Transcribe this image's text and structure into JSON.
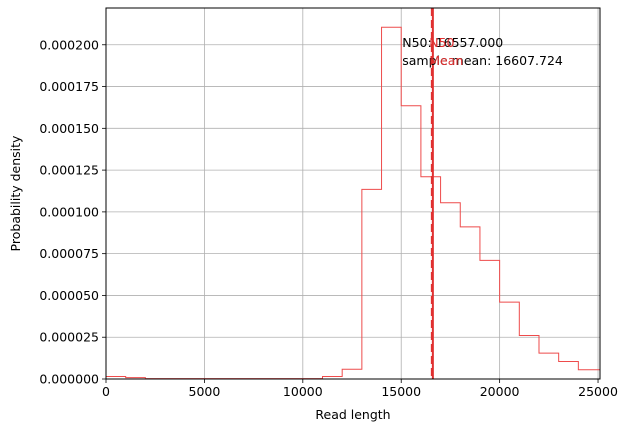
{
  "chart_data": {
    "type": "histogram",
    "xlabel": "Read length",
    "ylabel": "Probability density",
    "xlim": [
      0,
      25100
    ],
    "ylim": [
      0,
      0.000222
    ],
    "grid": true,
    "x_ticks": [
      0,
      5000,
      10000,
      15000,
      20000,
      25000
    ],
    "x_tick_labels": [
      "0",
      "5000",
      "10000",
      "15000",
      "20000",
      "25000"
    ],
    "y_ticks": [
      0,
      2.5e-05,
      5e-05,
      7.5e-05,
      0.0001,
      0.000125,
      0.00015,
      0.000175,
      0.0002
    ],
    "y_tick_labels": [
      "0.000000",
      "0.000025",
      "0.000050",
      "0.000075",
      "0.000100",
      "0.000125",
      "0.000150",
      "0.000175",
      "0.000200"
    ],
    "bin_edges": [
      0,
      1000,
      2000,
      3000,
      4000,
      5000,
      6000,
      7000,
      8000,
      9000,
      10000,
      11000,
      12000,
      13000,
      14000,
      15000,
      16000,
      17000,
      18000,
      19000,
      20000,
      21000,
      22000,
      23000,
      24000,
      25100
    ],
    "densities": [
      1.5e-06,
      8e-07,
      2e-07,
      2e-07,
      2e-07,
      2e-07,
      2e-07,
      2e-07,
      2e-07,
      2e-07,
      2e-07,
      1.5e-06,
      5.8e-06,
      0.0001135,
      0.0002105,
      0.0001635,
      0.000121,
      0.0001055,
      9.1e-05,
      7.1e-05,
      4.6e-05,
      2.6e-05,
      1.55e-05,
      1.05e-05,
      5.5e-06
    ],
    "histogram_color": "#ee4b4b",
    "lines": [
      {
        "label": "N50",
        "x": 16557.0,
        "color": "#e03030",
        "style": "dashed"
      },
      {
        "label": "Mean",
        "x": 16607.724,
        "color": "#e03030",
        "style": "solid"
      }
    ],
    "annotations": [
      {
        "text": "N50: 16557.000",
        "color": "#000000"
      },
      {
        "text": "sample mean: 16607.724",
        "color": "#000000"
      },
      {
        "text": "N50",
        "color": "#e03030"
      },
      {
        "text": "Mean",
        "color": "#e03030"
      }
    ]
  }
}
